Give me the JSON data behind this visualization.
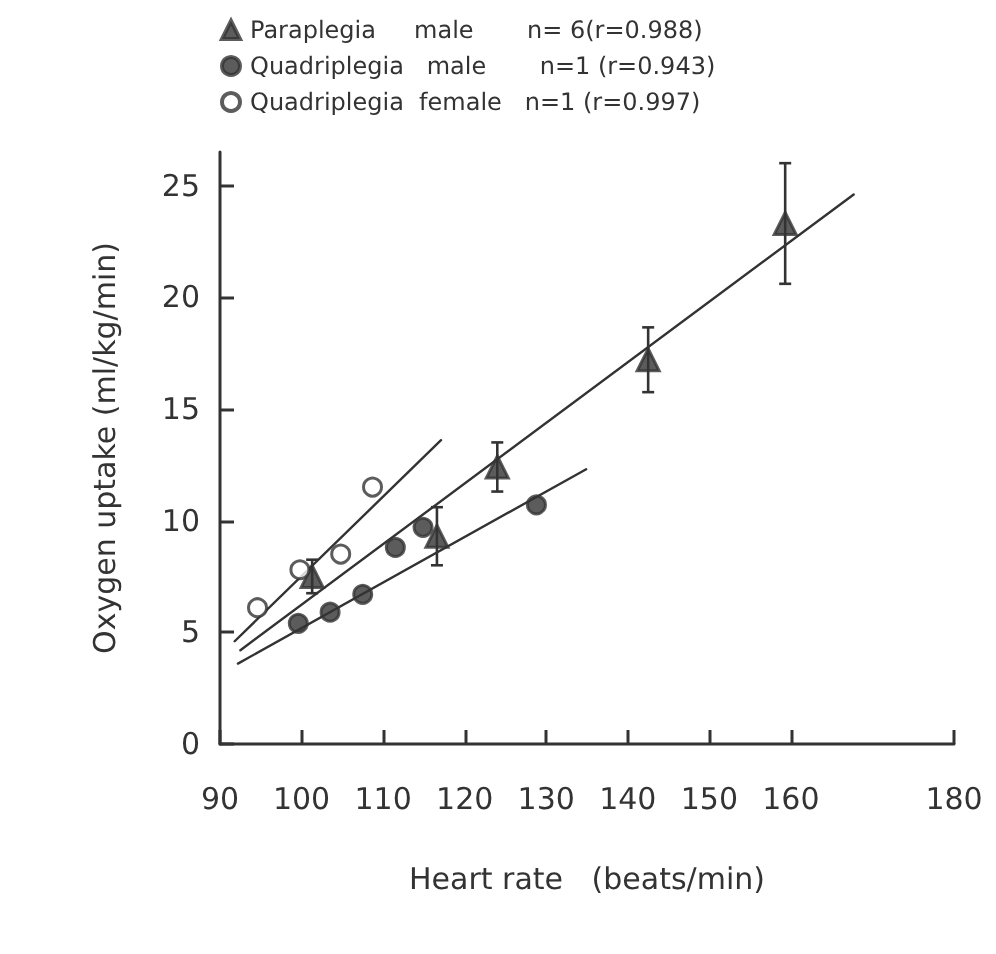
{
  "chart_data": {
    "type": "scatter",
    "xlabel": "Heart rate   (beats/min)",
    "ylabel": "Oxygen uptake (ml/kg/min)",
    "xlim": [
      90,
      180
    ],
    "xticks": [
      90,
      100,
      110,
      120,
      130,
      140,
      150,
      160,
      180
    ],
    "ylim": [
      0,
      26.5
    ],
    "yticks": [
      0,
      5,
      10,
      15,
      20,
      25
    ],
    "grid": false,
    "legend": "top",
    "series": [
      {
        "name": "Paraplegia     male       n= 6(r=0.988)",
        "color": "#333333",
        "marker": "triangle",
        "x": [
          101.3,
          116.6,
          124,
          142.5,
          159.3
        ],
        "values": [
          7.5,
          9.3,
          12.4,
          17.2,
          23.3
        ],
        "errors": [
          0.75,
          1.3,
          1.1,
          1.45,
          2.7
        ]
      },
      {
        "name": "Quadriplegia   male       n=1 (r=0.943)",
        "color": "#333333",
        "marker": "circle",
        "x": [
          99.6,
          103.5,
          107.5,
          111.5,
          114.9,
          128.8
        ],
        "values": [
          5.4,
          5.9,
          6.7,
          8.8,
          9.7,
          10.7
        ]
      },
      {
        "name": "Quadriplegia  female   n=1 (r=0.997)",
        "color": "#ffffff",
        "marker": "circle",
        "x": [
          94.6,
          99.8,
          104.8,
          108.7
        ],
        "values": [
          6.1,
          7.8,
          8.5,
          11.5
        ]
      },
      {
        "type": "line",
        "color": "#333333",
        "marker": "none",
        "line_style": "solid",
        "x": [
          92.5,
          167.7
        ],
        "values": [
          4.2,
          24.6
        ]
      },
      {
        "type": "line",
        "color": "#333333",
        "marker": "none",
        "line_style": "solid",
        "x": [
          92.2,
          134.9
        ],
        "values": [
          3.6,
          12.3
        ]
      },
      {
        "type": "line",
        "color": "#333333",
        "marker": "none",
        "line_style": "solid",
        "x": [
          91.8,
          117.1
        ],
        "values": [
          4.6,
          13.6
        ]
      }
    ]
  }
}
